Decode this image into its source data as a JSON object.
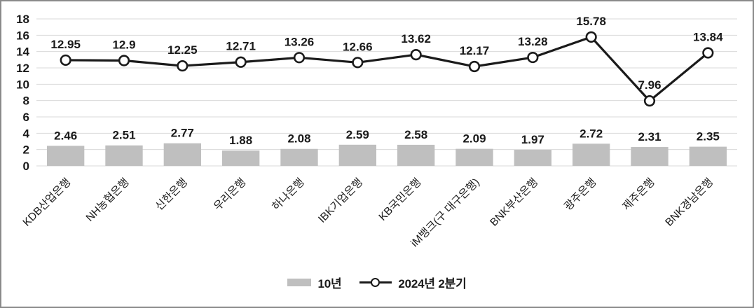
{
  "chart_data": {
    "type": "combo-bar-line",
    "title": "",
    "xlabel": "",
    "ylabel": "",
    "categories": [
      "KDB산업은행",
      "NH농협은행",
      "신한은행",
      "우리은행",
      "하나은행",
      "IBK기업은행",
      "KB국민은행",
      "iM뱅크(구 대구은행)",
      "BNK부산은행",
      "광주은행",
      "제주은행",
      "BNK경남은행"
    ],
    "series": [
      {
        "name": "10년",
        "type": "bar",
        "color": "#bfbfbf",
        "values": [
          2.46,
          2.51,
          2.77,
          1.88,
          2.08,
          2.59,
          2.58,
          2.09,
          1.97,
          2.72,
          2.31,
          2.35
        ],
        "labels": [
          "2.46",
          "2.51",
          "2.77",
          "1.88",
          "2.08",
          "2.59",
          "2.58",
          "2.09",
          "1.97",
          "2.72",
          "2.31",
          "2.35"
        ]
      },
      {
        "name": "2024년 2분기",
        "type": "line",
        "color": "#1a1a1a",
        "marker_fill": "#ffffff",
        "values": [
          12.95,
          12.9,
          12.25,
          12.71,
          13.26,
          12.66,
          13.62,
          12.17,
          13.28,
          15.78,
          7.96,
          13.84
        ],
        "labels": [
          "12.95",
          "12.9",
          "12.25",
          "12.71",
          "13.26",
          "12.66",
          "13.62",
          "12.17",
          "13.28",
          "15.78",
          "7.96",
          "13.84"
        ]
      }
    ],
    "ylim": [
      0,
      18
    ],
    "yticks": [
      0,
      2,
      4,
      6,
      8,
      10,
      12,
      14,
      16,
      18
    ],
    "grid": true,
    "grid_color": "#d9d9d9",
    "text_color": "#1a1a1a",
    "legend_position": "bottom"
  }
}
